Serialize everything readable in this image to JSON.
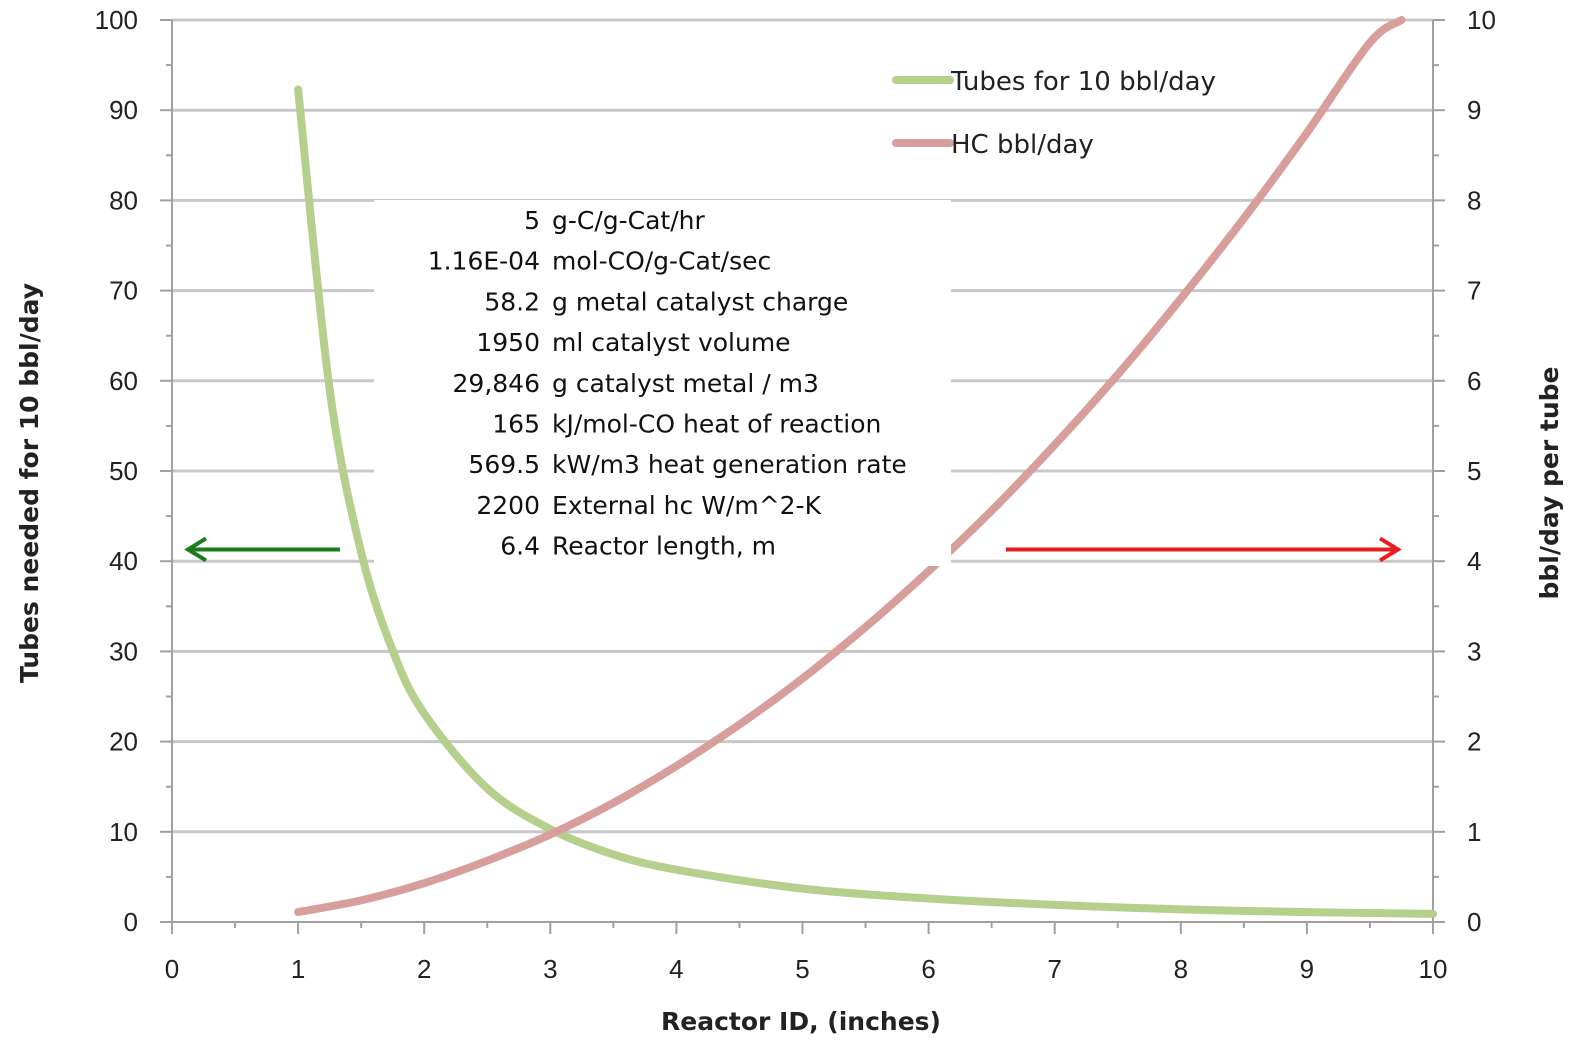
{
  "chart_data": {
    "type": "line",
    "xlabel": "Reactor ID, (inches)",
    "ylabel_left": "Tubes needed for 10 bbl/day",
    "ylabel_right": "bbl/day per tube",
    "xlim": [
      0,
      10
    ],
    "ylim_left": [
      0,
      100
    ],
    "ylim_right": [
      0,
      10
    ],
    "x_ticks": [
      "0",
      "1",
      "2",
      "3",
      "4",
      "5",
      "6",
      "7",
      "8",
      "9",
      "10"
    ],
    "y_left_ticks": [
      "0",
      "10",
      "20",
      "30",
      "40",
      "50",
      "60",
      "70",
      "80",
      "90",
      "100"
    ],
    "y_right_ticks": [
      "0",
      "1",
      "2",
      "3",
      "4",
      "5",
      "6",
      "7",
      "8",
      "9",
      "10"
    ],
    "grid": true,
    "legend_position": "top-right",
    "series": [
      {
        "name": "Tubes for 10 bbl/day",
        "axis": "left",
        "color": "#b5cf8c",
        "x": [
          1.0,
          1.25,
          1.5,
          1.75,
          2.0,
          2.5,
          3.0,
          3.5,
          4.0,
          5.0,
          6.0,
          7.0,
          8.0,
          9.0,
          10.0
        ],
        "y": [
          92.3,
          59.1,
          41.0,
          30.1,
          23.1,
          14.8,
          10.3,
          7.5,
          5.8,
          3.7,
          2.6,
          1.9,
          1.4,
          1.1,
          0.9
        ]
      },
      {
        "name": "HC bbl/day",
        "axis": "right",
        "color": "#d79e9c",
        "x": [
          1.0,
          1.5,
          2.0,
          2.5,
          3.0,
          3.5,
          4.0,
          4.5,
          5.0,
          5.5,
          6.0,
          6.5,
          7.0,
          7.5,
          8.0,
          8.5,
          9.0,
          9.5,
          9.75
        ],
        "y": [
          0.11,
          0.24,
          0.43,
          0.68,
          0.97,
          1.32,
          1.73,
          2.19,
          2.7,
          3.27,
          3.89,
          4.56,
          5.29,
          6.07,
          6.91,
          7.8,
          8.75,
          9.75,
          10.0
        ]
      }
    ],
    "annotation_table": [
      {
        "value": "5",
        "label": "g-C/g-Cat/hr"
      },
      {
        "value": "1.16E-04",
        "label": "mol-CO/g-Cat/sec"
      },
      {
        "value": "58.2",
        "label": "g metal catalyst charge"
      },
      {
        "value": "1950",
        "label": "ml catalyst volume"
      },
      {
        "value": "29,846",
        "label": "g catalyst metal / m3"
      },
      {
        "value": "165",
        "label": "kJ/mol-CO heat of reaction"
      },
      {
        "value": "569.5",
        "label": "kW/m3 heat generation rate"
      },
      {
        "value": "2200",
        "label": "External hc W/m^2-K"
      },
      {
        "value": "6.4",
        "label": "Reactor length, m"
      }
    ],
    "arrows": [
      {
        "direction": "left",
        "points_to": "left axis",
        "color": "#1a7d1a"
      },
      {
        "direction": "right",
        "points_to": "right axis",
        "color": "#e81e1e"
      }
    ],
    "colors": {
      "grid": "#c8c8c8",
      "axis": "#a0a0a0"
    }
  }
}
